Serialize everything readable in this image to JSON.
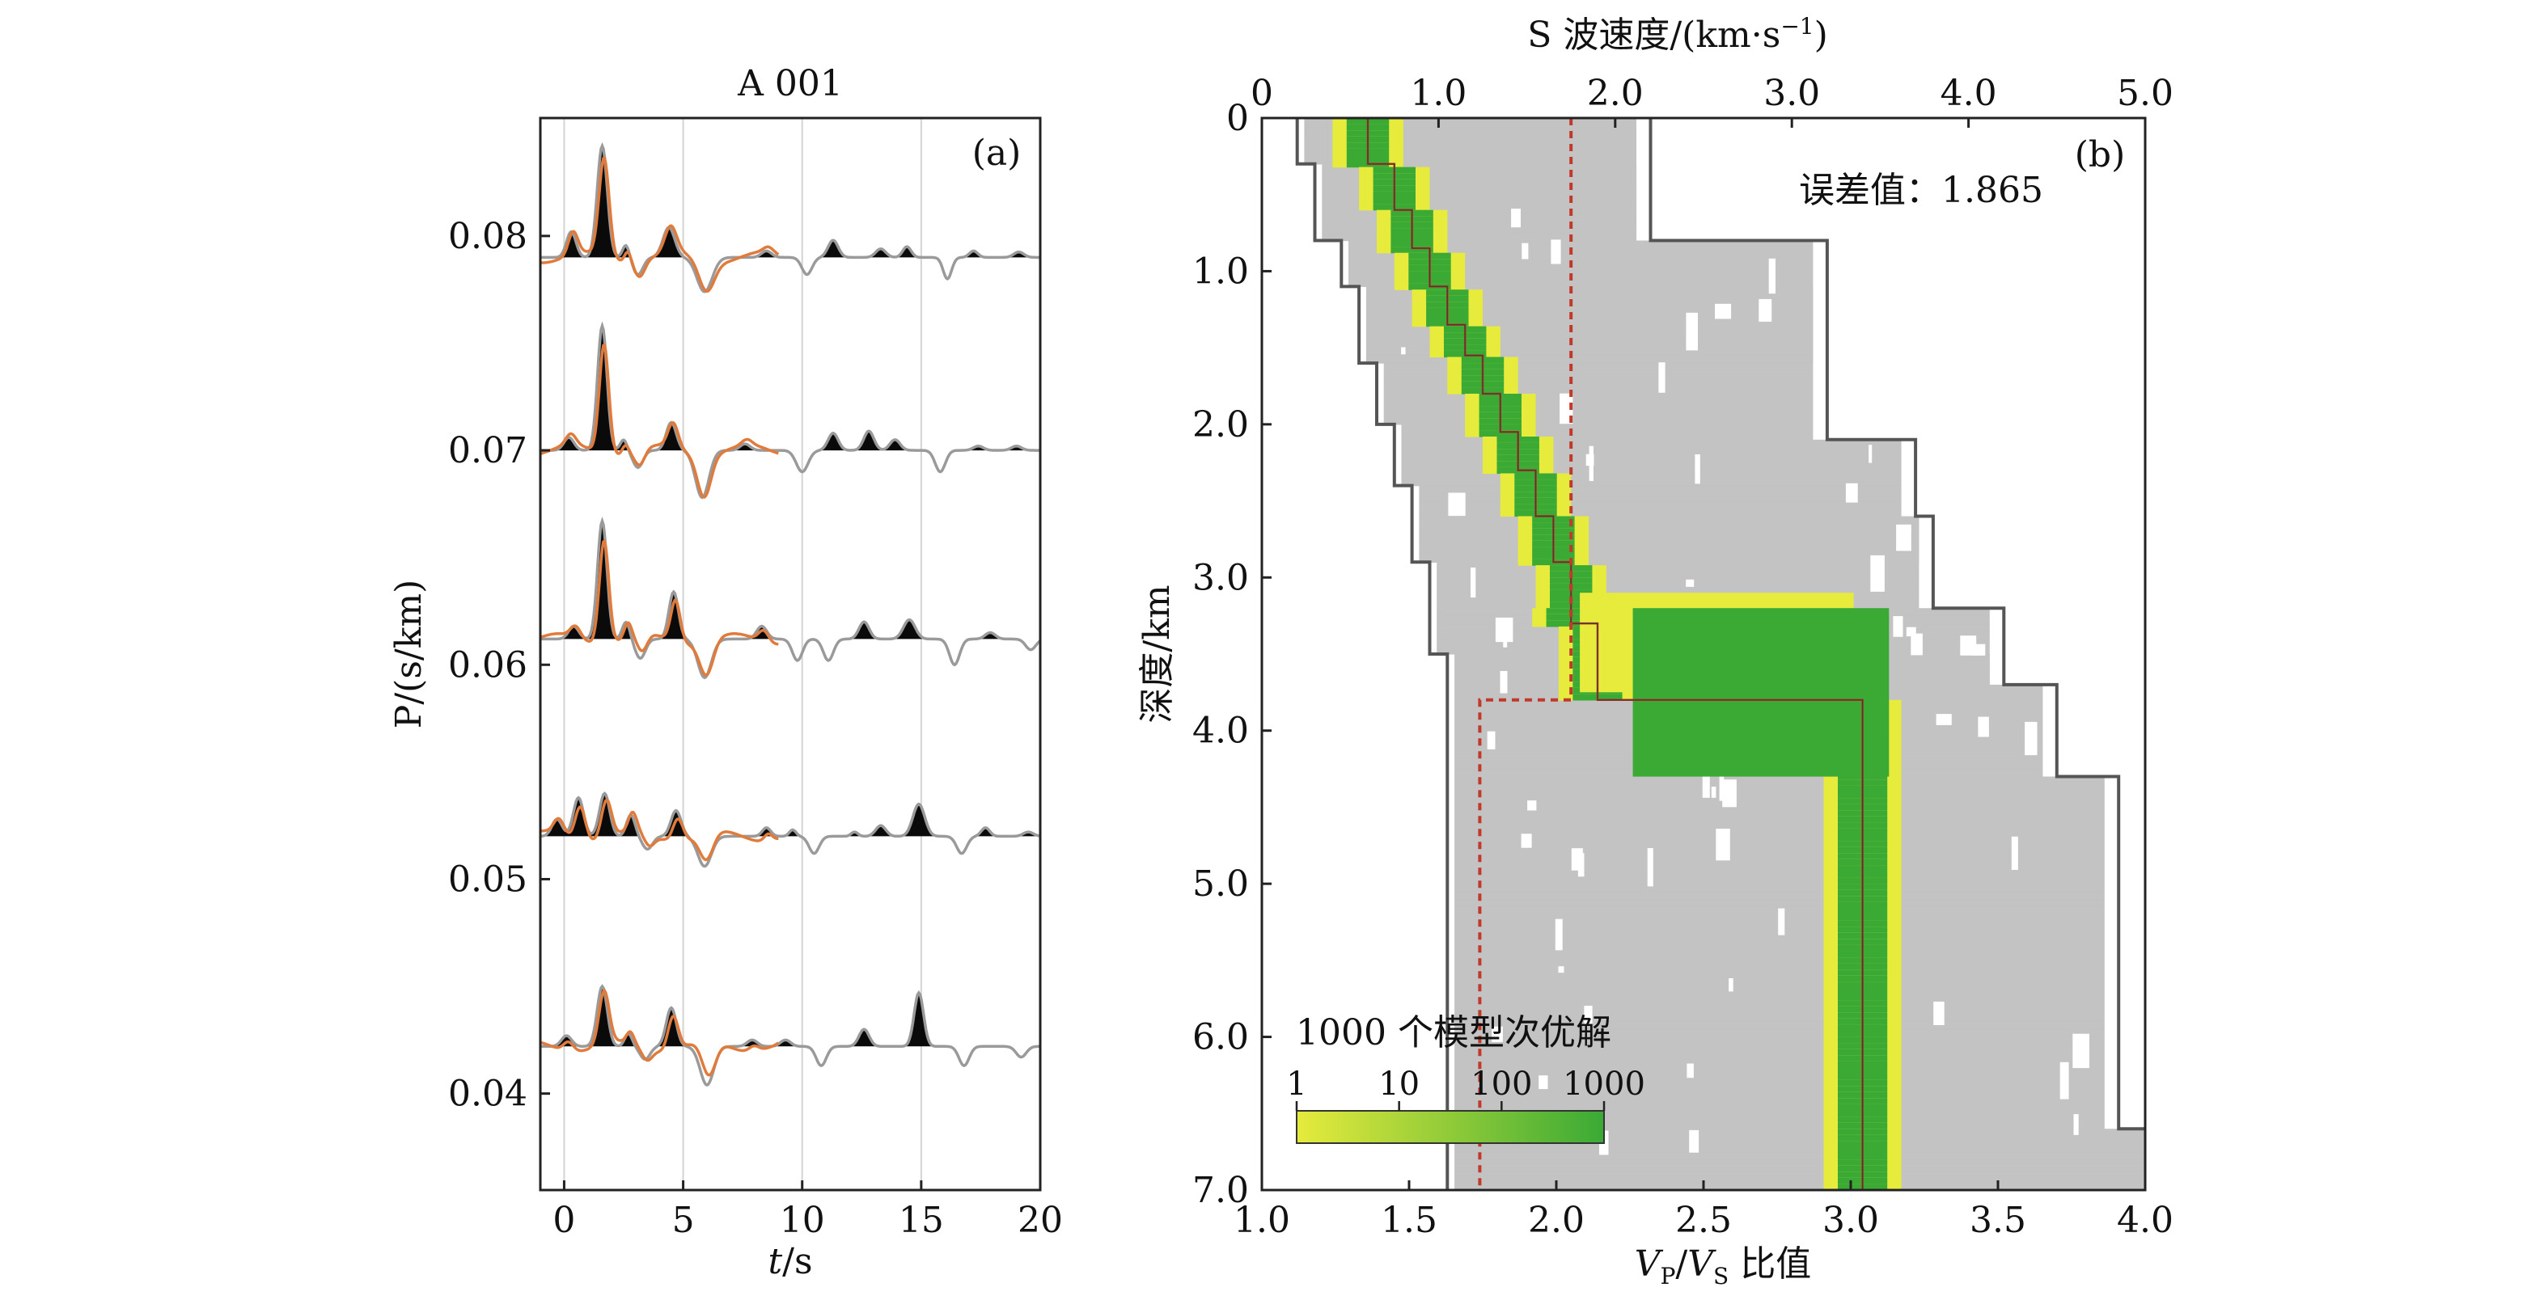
{
  "chart_data": [
    {
      "type": "line",
      "panel_label": "(a)",
      "title": "A 001",
      "xlabel_italic": "t",
      "xlabel_unit": "/s",
      "ylabel": "P/(s/km)",
      "xlim": [
        -1,
        20
      ],
      "ylim": [
        0.0355,
        0.0855
      ],
      "xticks": [
        0,
        5,
        10,
        15,
        20
      ],
      "yticks": [
        "0.08",
        "0.07",
        "0.06",
        "0.05",
        "0.04"
      ],
      "ytick_values": [
        0.08,
        0.07,
        0.06,
        0.05,
        0.04
      ],
      "grid_x": [
        0,
        5,
        10,
        15
      ],
      "series": [
        {
          "baseline": 0.079,
          "peaks": [
            [
              0.3,
              0.0012,
              0.28
            ],
            [
              1.6,
              0.0052,
              0.3
            ],
            [
              2.6,
              0.0006,
              0.2
            ],
            [
              4.4,
              0.0014,
              0.35
            ],
            [
              8.5,
              0.0003,
              0.3
            ],
            [
              11.3,
              0.0008,
              0.3
            ],
            [
              13.3,
              0.0004,
              0.3
            ],
            [
              14.4,
              0.0005,
              0.25
            ],
            [
              17.2,
              0.0003,
              0.25
            ],
            [
              19.1,
              0.00025,
              0.3
            ]
          ],
          "troughs": [
            [
              3.1,
              0.0008,
              0.3
            ],
            [
              5.9,
              0.0016,
              0.45
            ],
            [
              10.2,
              0.0008,
              0.3
            ],
            [
              16.1,
              0.001,
              0.25
            ]
          ]
        },
        {
          "baseline": 0.07,
          "peaks": [
            [
              0.2,
              0.0006,
              0.3
            ],
            [
              1.6,
              0.0058,
              0.28
            ],
            [
              2.5,
              0.0005,
              0.2
            ],
            [
              4.5,
              0.0013,
              0.3
            ],
            [
              7.6,
              0.0003,
              0.3
            ],
            [
              11.3,
              0.0008,
              0.3
            ],
            [
              12.8,
              0.0009,
              0.3
            ],
            [
              13.9,
              0.0005,
              0.3
            ],
            [
              17.4,
              0.0002,
              0.3
            ],
            [
              19.0,
              0.0002,
              0.3
            ]
          ],
          "troughs": [
            [
              3.1,
              0.0008,
              0.3
            ],
            [
              5.8,
              0.0022,
              0.4
            ],
            [
              10.0,
              0.001,
              0.35
            ],
            [
              15.8,
              0.001,
              0.3
            ]
          ]
        },
        {
          "baseline": 0.0612,
          "peaks": [
            [
              0.4,
              0.0006,
              0.3
            ],
            [
              1.6,
              0.0055,
              0.28
            ],
            [
              2.6,
              0.0008,
              0.22
            ],
            [
              4.6,
              0.0022,
              0.28
            ],
            [
              8.3,
              0.0006,
              0.3
            ],
            [
              12.6,
              0.0008,
              0.3
            ],
            [
              14.5,
              0.0009,
              0.35
            ],
            [
              17.9,
              0.0003,
              0.3
            ]
          ],
          "troughs": [
            [
              3.2,
              0.0009,
              0.3
            ],
            [
              5.9,
              0.0018,
              0.4
            ],
            [
              9.8,
              0.001,
              0.3
            ],
            [
              11.1,
              0.001,
              0.3
            ],
            [
              16.4,
              0.0012,
              0.3
            ],
            [
              19.6,
              0.0005,
              0.3
            ]
          ]
        },
        {
          "baseline": 0.052,
          "peaks": [
            [
              -0.3,
              0.0008,
              0.3
            ],
            [
              0.6,
              0.0018,
              0.3
            ],
            [
              1.7,
              0.002,
              0.3
            ],
            [
              2.8,
              0.001,
              0.25
            ],
            [
              4.7,
              0.0012,
              0.3
            ],
            [
              8.5,
              0.0004,
              0.25
            ],
            [
              9.6,
              0.0003,
              0.2
            ],
            [
              12.2,
              0.0002,
              0.2
            ],
            [
              13.3,
              0.0005,
              0.3
            ],
            [
              14.9,
              0.0015,
              0.35
            ],
            [
              17.7,
              0.0004,
              0.25
            ],
            [
              19.5,
              0.0002,
              0.3
            ]
          ],
          "troughs": [
            [
              3.5,
              0.0006,
              0.3
            ],
            [
              5.9,
              0.0014,
              0.4
            ],
            [
              10.5,
              0.0008,
              0.3
            ],
            [
              16.7,
              0.0008,
              0.3
            ]
          ]
        },
        {
          "baseline": 0.0422,
          "peaks": [
            [
              0.1,
              0.0005,
              0.3
            ],
            [
              1.6,
              0.0028,
              0.3
            ],
            [
              2.7,
              0.0006,
              0.22
            ],
            [
              4.5,
              0.0018,
              0.3
            ],
            [
              7.9,
              0.0003,
              0.3
            ],
            [
              9.3,
              0.0003,
              0.3
            ],
            [
              12.6,
              0.0008,
              0.3
            ],
            [
              14.9,
              0.0025,
              0.28
            ]
          ],
          "troughs": [
            [
              3.4,
              0.0006,
              0.3
            ],
            [
              6.0,
              0.0018,
              0.4
            ],
            [
              10.8,
              0.0009,
              0.3
            ],
            [
              16.8,
              0.0009,
              0.3
            ],
            [
              19.2,
              0.0005,
              0.3
            ]
          ]
        }
      ]
    },
    {
      "type": "heatmap",
      "panel_label": "(b)",
      "annotation": "误差值：1.865",
      "title_top_axis": "S 波速度/(km·s",
      "title_top_axis_sup": "−1",
      "title_top_axis_end": ")",
      "top_xlim": [
        0,
        5
      ],
      "top_xticks": [
        "0",
        "1.0",
        "2.0",
        "3.0",
        "4.0",
        "5.0"
      ],
      "top_xtick_values": [
        0,
        1,
        2,
        3,
        4,
        5
      ],
      "bottom_xlabel_V1": "V",
      "bottom_xlabel_sub1": "P",
      "bottom_xlabel_slash": "/",
      "bottom_xlabel_V2": "V",
      "bottom_xlabel_sub2": "S",
      "bottom_xlabel_rest": " 比值",
      "bottom_xlim": [
        1.0,
        4.0
      ],
      "bottom_xticks": [
        "1.0",
        "1.5",
        "2.0",
        "2.5",
        "3.0",
        "3.5",
        "4.0"
      ],
      "bottom_xtick_values": [
        1.0,
        1.5,
        2.0,
        2.5,
        3.0,
        3.5,
        4.0
      ],
      "ylabel": "深度/km",
      "ylim": [
        0,
        7
      ],
      "yticks": [
        "0",
        "1.0",
        "2.0",
        "3.0",
        "4.0",
        "5.0",
        "6.0",
        "7.0"
      ],
      "ytick_values": [
        0,
        1,
        2,
        3,
        4,
        5,
        6,
        7
      ],
      "colorbar_title": "1000 个模型次优解",
      "colorbar_ticks": [
        "1",
        "10",
        "100",
        "1000"
      ],
      "colorbar_tick_values": [
        1,
        10,
        100,
        1000
      ],
      "colors": {
        "gray_cloud": "#c3c3c3",
        "best_model": "#d2232a",
        "vpvs": "#c0392b",
        "bounds": "#555555",
        "green": "#3aaa35",
        "yellow": "#e6eb3c"
      },
      "best_vs_model": [
        [
          0,
          0.6
        ],
        [
          0.3,
          0.6
        ],
        [
          0.3,
          0.75
        ],
        [
          0.6,
          0.75
        ],
        [
          0.6,
          0.85
        ],
        [
          0.85,
          0.85
        ],
        [
          0.85,
          0.95
        ],
        [
          1.1,
          0.95
        ],
        [
          1.1,
          1.05
        ],
        [
          1.35,
          1.05
        ],
        [
          1.35,
          1.15
        ],
        [
          1.55,
          1.15
        ],
        [
          1.55,
          1.25
        ],
        [
          1.8,
          1.25
        ],
        [
          1.8,
          1.35
        ],
        [
          2.05,
          1.35
        ],
        [
          2.05,
          1.45
        ],
        [
          2.3,
          1.45
        ],
        [
          2.3,
          1.55
        ],
        [
          2.6,
          1.55
        ],
        [
          2.6,
          1.65
        ],
        [
          2.9,
          1.65
        ],
        [
          2.9,
          1.75
        ],
        [
          3.3,
          1.75
        ],
        [
          3.3,
          1.9
        ],
        [
          3.8,
          1.9
        ],
        [
          3.8,
          3.4
        ],
        [
          7.0,
          3.4
        ]
      ],
      "vs_min_bound": [
        [
          0,
          0.2
        ],
        [
          0.3,
          0.2
        ],
        [
          0.3,
          0.3
        ],
        [
          0.8,
          0.3
        ],
        [
          0.8,
          0.45
        ],
        [
          1.1,
          0.45
        ],
        [
          1.1,
          0.55
        ],
        [
          1.6,
          0.55
        ],
        [
          1.6,
          0.65
        ],
        [
          2.0,
          0.65
        ],
        [
          2.0,
          0.75
        ],
        [
          2.4,
          0.75
        ],
        [
          2.4,
          0.85
        ],
        [
          2.9,
          0.85
        ],
        [
          2.9,
          0.95
        ],
        [
          3.5,
          0.95
        ],
        [
          3.5,
          1.05
        ],
        [
          7.0,
          1.05
        ]
      ],
      "vs_max_bound": [
        [
          0,
          2.2
        ],
        [
          0.8,
          2.2
        ],
        [
          0.8,
          3.2
        ],
        [
          2.1,
          3.2
        ],
        [
          2.1,
          3.7
        ],
        [
          2.6,
          3.7
        ],
        [
          2.6,
          3.8
        ],
        [
          3.2,
          3.8
        ],
        [
          3.2,
          4.2
        ],
        [
          3.7,
          4.2
        ],
        [
          3.7,
          4.5
        ],
        [
          4.3,
          4.5
        ],
        [
          4.3,
          4.85
        ],
        [
          6.6,
          4.85
        ],
        [
          6.6,
          5.1
        ],
        [
          7.0,
          5.1
        ]
      ],
      "vpvs_model": [
        [
          0,
          2.05
        ],
        [
          3.8,
          2.05
        ],
        [
          3.8,
          1.74
        ],
        [
          7.0,
          1.74
        ]
      ]
    }
  ]
}
